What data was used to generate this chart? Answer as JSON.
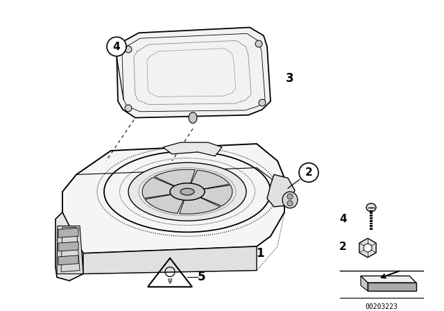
{
  "bg_color": "#ffffff",
  "line_color": "#000000",
  "fig_width": 6.4,
  "fig_height": 4.48,
  "dpi": 100,
  "part_number": "00203223"
}
